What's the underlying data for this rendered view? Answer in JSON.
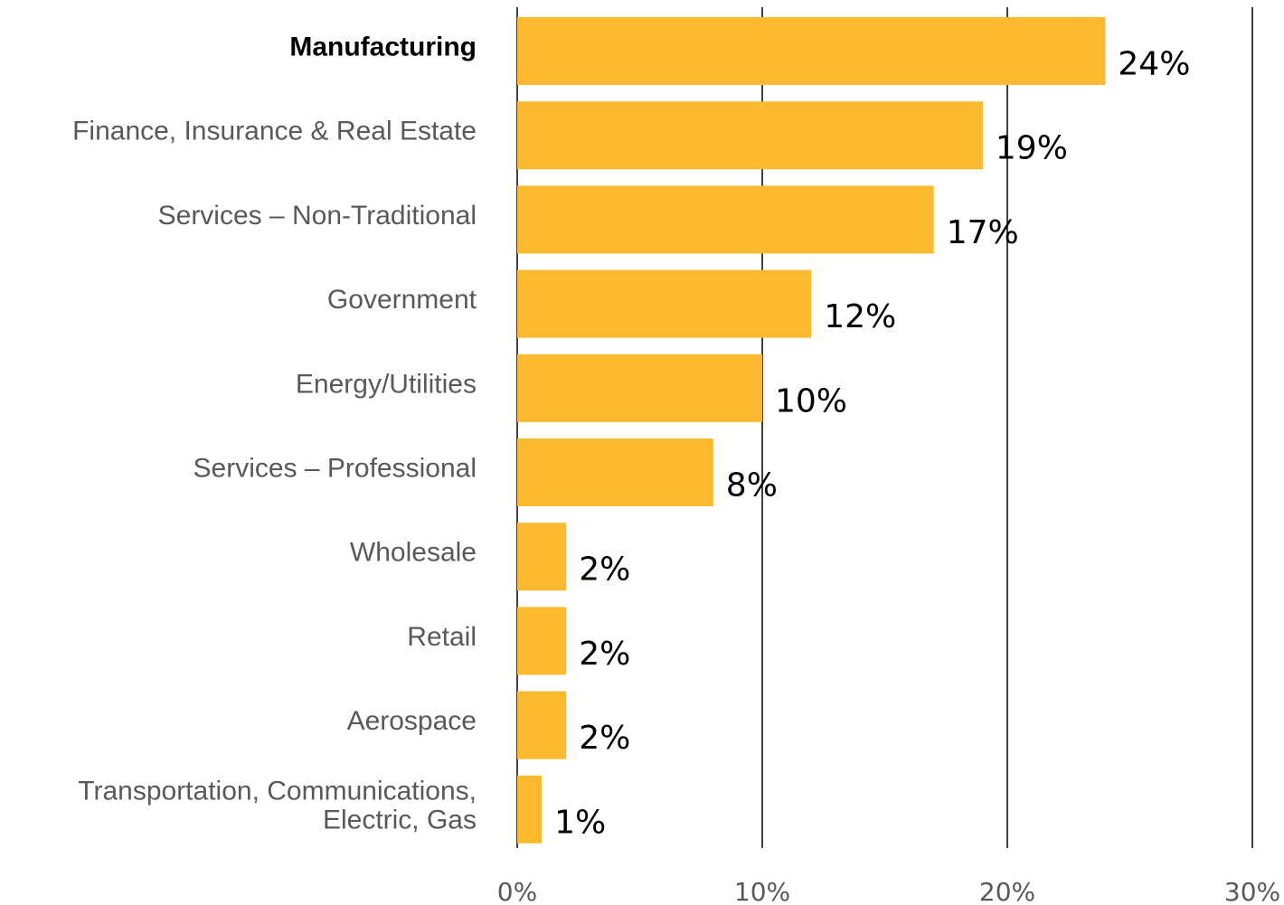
{
  "chart_data": {
    "type": "bar",
    "orientation": "horizontal",
    "categories": [
      "Manufacturing",
      "Finance, Insurance & Real Estate",
      "Services – Non-Traditional",
      "Government",
      "Energy/Utilities",
      "Services – Professional",
      "Wholesale",
      "Retail",
      "Aerospace",
      "Transportation, Communications, Electric, Gas"
    ],
    "category_label_lines": [
      [
        "Manufacturing"
      ],
      [
        "Finance, Insurance & Real Estate"
      ],
      [
        "Services – Non-Traditional"
      ],
      [
        "Government"
      ],
      [
        "Energy/Utilities"
      ],
      [
        "Services – Professional"
      ],
      [
        "Wholesale"
      ],
      [
        "Retail"
      ],
      [
        "Aerospace"
      ],
      [
        "Transportation, Communications,",
        "Electric, Gas"
      ]
    ],
    "bold_categories": [
      "Manufacturing"
    ],
    "values": [
      24,
      19,
      17,
      12,
      10,
      8,
      2,
      2,
      2,
      1
    ],
    "data_labels": [
      "24%",
      "19%",
      "17%",
      "12%",
      "10%",
      "8%",
      "2%",
      "2%",
      "2%",
      "1%"
    ],
    "x_ticks": [
      0,
      10,
      20,
      30
    ],
    "x_tick_labels": [
      "0%",
      "10%",
      "20%",
      "30%"
    ],
    "xlim": [
      0,
      30
    ],
    "title": "",
    "xlabel": "",
    "ylabel": "",
    "grid": "vertical",
    "legend": "none",
    "colors": {
      "bar": "#FBB930",
      "grid": "#000000"
    }
  }
}
